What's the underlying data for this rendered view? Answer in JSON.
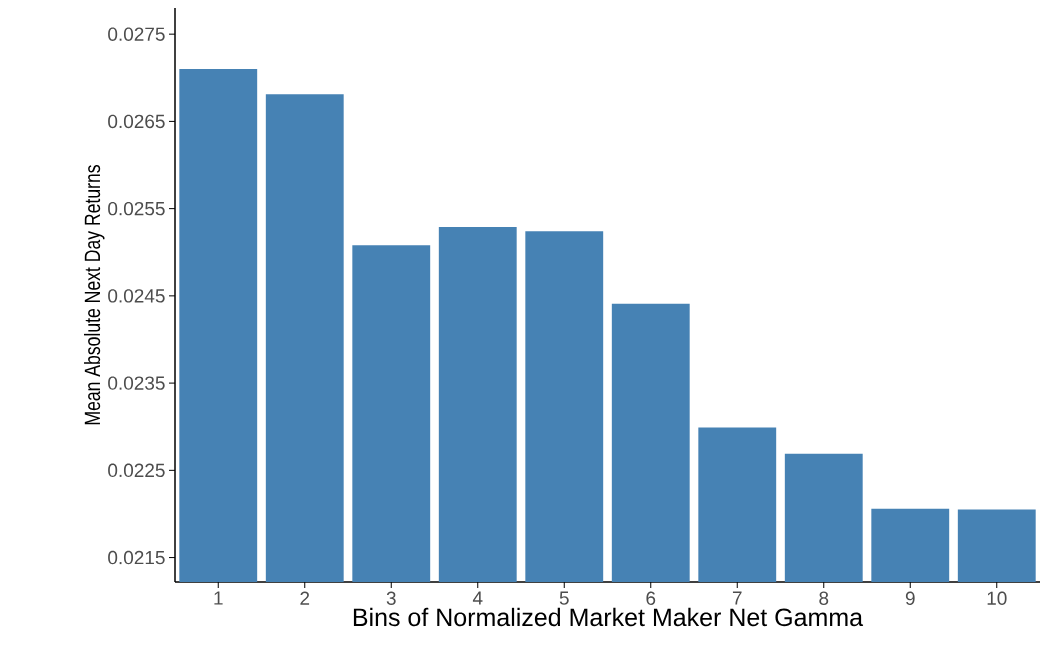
{
  "chart_data": {
    "type": "bar",
    "xlabel": "Bins of Normalized Market Maker Net Gamma",
    "ylabel": "Mean Absolute Next Day Returns",
    "categories": [
      "1",
      "2",
      "3",
      "4",
      "5",
      "6",
      "7",
      "8",
      "9",
      "10"
    ],
    "values": [
      0.0271,
      0.02681,
      0.02508,
      0.02529,
      0.02524,
      0.02441,
      0.02299,
      0.02269,
      0.02206,
      0.02205
    ],
    "color": "#4682b4",
    "ylim": [
      0.02122,
      0.0278
    ],
    "yticks": [
      0.0215,
      0.0225,
      0.0235,
      0.0245,
      0.0255,
      0.0265,
      0.0275
    ],
    "grid": false
  }
}
